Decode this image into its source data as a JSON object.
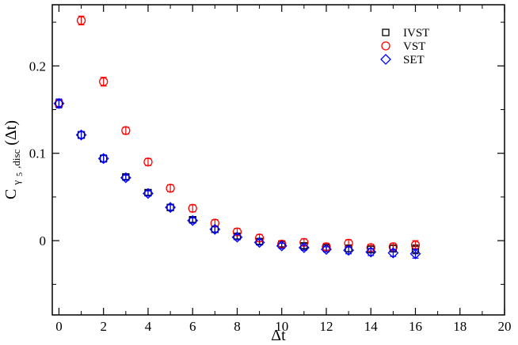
{
  "chart_data": {
    "type": "scatter",
    "xlabel": "Δt",
    "ylabel": {
      "main": "C",
      "subscript": "γ",
      "sub_subscript": "5",
      "subscript_tail": ",disc",
      "suffix": "(Δt)"
    },
    "xlim": [
      -0.3,
      20
    ],
    "ylim": [
      -0.085,
      0.27
    ],
    "xticks": [
      0,
      2,
      4,
      6,
      8,
      10,
      12,
      14,
      16,
      18,
      20
    ],
    "yticks": [
      0,
      0.1,
      0.2
    ],
    "xtick_labels": [
      "0",
      "2",
      "4",
      "6",
      "8",
      "10",
      "12",
      "14",
      "16",
      "18",
      "20"
    ],
    "ytick_labels": [
      "0",
      "0.1",
      "0.2"
    ],
    "grid": false,
    "legend_position": "top-right",
    "series": [
      {
        "name": "IVST",
        "marker": "square",
        "color": "#000000",
        "x": [
          0,
          1,
          2,
          3,
          4,
          5,
          6,
          7,
          8,
          9,
          10,
          11,
          12,
          13,
          14,
          15,
          16
        ],
        "y": [
          0.157,
          0.121,
          0.094,
          0.073,
          0.055,
          0.038,
          0.024,
          0.013,
          0.005,
          -0.001,
          -0.004,
          -0.006,
          -0.008,
          -0.009,
          -0.01,
          -0.009,
          -0.01
        ],
        "err": [
          0.005,
          0.004,
          0.004,
          0.003,
          0.003,
          0.003,
          0.003,
          0.003,
          0.003,
          0.003,
          0.003,
          0.003,
          0.003,
          0.004,
          0.004,
          0.004,
          0.005
        ]
      },
      {
        "name": "VST",
        "marker": "circle",
        "color": "#ff0000",
        "x": [
          0,
          1,
          2,
          3,
          4,
          5,
          6,
          7,
          8,
          9,
          10,
          11,
          12,
          13,
          14,
          15,
          16
        ],
        "y": [
          0.157,
          0.252,
          0.182,
          0.126,
          0.09,
          0.06,
          0.037,
          0.02,
          0.01,
          0.003,
          -0.004,
          -0.002,
          -0.007,
          -0.003,
          -0.008,
          -0.007,
          -0.005
        ],
        "err": [
          0.005,
          0.005,
          0.005,
          0.004,
          0.004,
          0.004,
          0.004,
          0.004,
          0.004,
          0.004,
          0.004,
          0.004,
          0.004,
          0.004,
          0.004,
          0.004,
          0.005
        ]
      },
      {
        "name": "SET",
        "marker": "diamond",
        "color": "#0000ff",
        "x": [
          0,
          1,
          2,
          3,
          4,
          5,
          6,
          7,
          8,
          9,
          10,
          11,
          12,
          13,
          14,
          15,
          16
        ],
        "y": [
          0.157,
          0.121,
          0.094,
          0.072,
          0.054,
          0.038,
          0.023,
          0.013,
          0.004,
          -0.002,
          -0.006,
          -0.008,
          -0.01,
          -0.011,
          -0.013,
          -0.014,
          -0.015
        ],
        "err": [
          0.005,
          0.004,
          0.004,
          0.003,
          0.003,
          0.003,
          0.003,
          0.003,
          0.003,
          0.003,
          0.003,
          0.003,
          0.003,
          0.004,
          0.004,
          0.004,
          0.005
        ]
      }
    ]
  }
}
